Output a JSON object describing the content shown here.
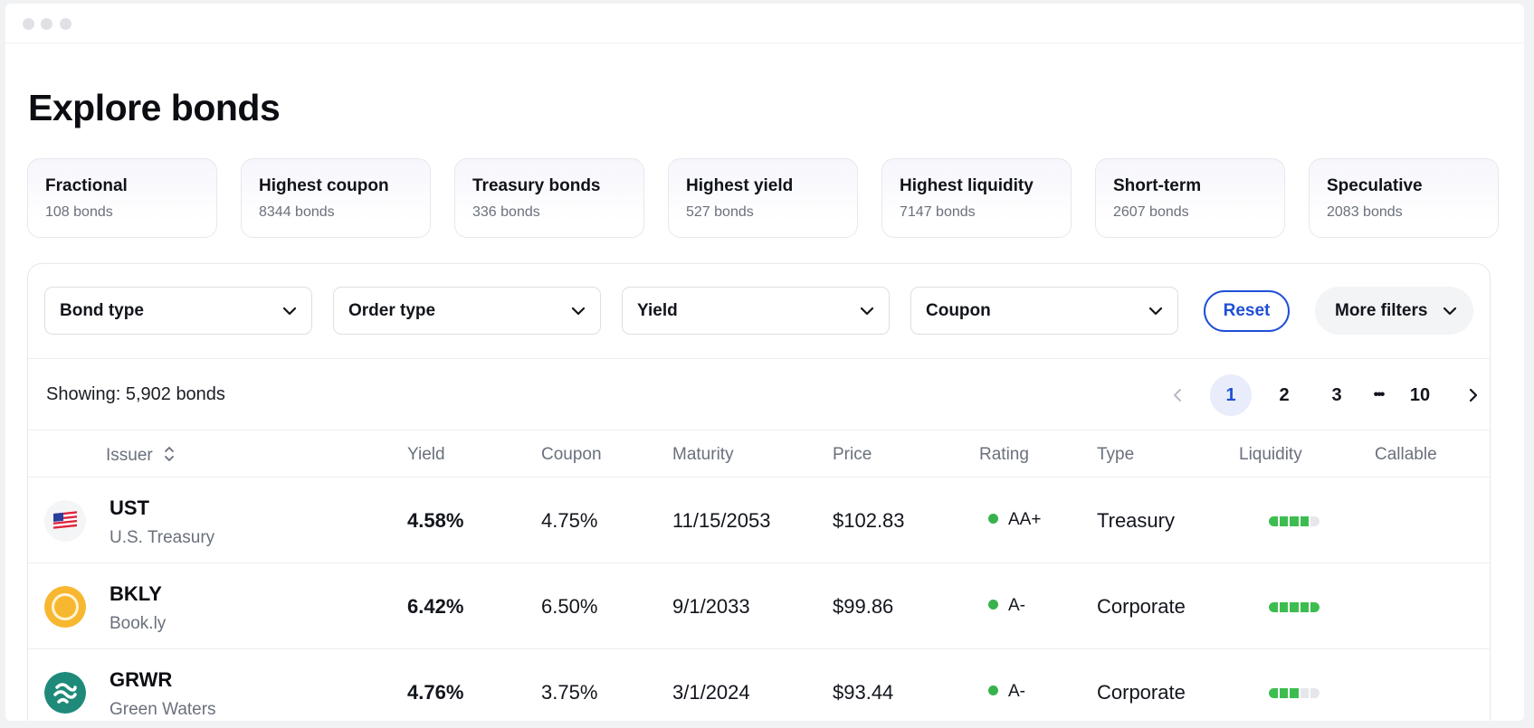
{
  "page": {
    "title": "Explore bonds"
  },
  "categories": [
    {
      "title": "Fractional",
      "count": "108 bonds"
    },
    {
      "title": "Highest coupon",
      "count": "8344 bonds"
    },
    {
      "title": "Treasury bonds",
      "count": "336 bonds"
    },
    {
      "title": "Highest yield",
      "count": "527 bonds"
    },
    {
      "title": "Highest liquidity",
      "count": "7147 bonds"
    },
    {
      "title": "Short-term",
      "count": "2607 bonds"
    },
    {
      "title": "Speculative",
      "count": "2083 bonds"
    }
  ],
  "filters": {
    "bond_type": "Bond type",
    "order_type": "Order type",
    "yield": "Yield",
    "coupon": "Coupon",
    "reset": "Reset",
    "more": "More filters"
  },
  "results": {
    "showing": "Showing: 5,902 bonds"
  },
  "pagination": {
    "pages": [
      "1",
      "2",
      "3"
    ],
    "ellipsis": "•••",
    "last": "10",
    "current": "1"
  },
  "table": {
    "columns": {
      "issuer": "Issuer",
      "yield": "Yield",
      "coupon": "Coupon",
      "maturity": "Maturity",
      "price": "Price",
      "rating": "Rating",
      "type": "Type",
      "liquidity": "Liquidity",
      "callable": "Callable"
    },
    "rows": [
      {
        "ticker": "UST",
        "issuer": "U.S. Treasury",
        "yield": "4.58%",
        "coupon": "4.75%",
        "maturity": "11/15/2053",
        "price": "$102.83",
        "rating": "AA+",
        "rating_color": "#37b24d",
        "type": "Treasury",
        "liquidity_level": 4,
        "liquidity_max": 5,
        "callable": "",
        "logo": "us-flag-icon"
      },
      {
        "ticker": "BKLY",
        "issuer": "Book.ly",
        "yield": "6.42%",
        "coupon": "6.50%",
        "maturity": "9/1/2033",
        "price": "$99.86",
        "rating": "A-",
        "rating_color": "#37b24d",
        "type": "Corporate",
        "liquidity_level": 5,
        "liquidity_max": 5,
        "callable": "",
        "logo": "bookly-logo-icon"
      },
      {
        "ticker": "GRWR",
        "issuer": "Green Waters",
        "yield": "4.76%",
        "coupon": "3.75%",
        "maturity": "3/1/2024",
        "price": "$93.44",
        "rating": "A-",
        "rating_color": "#37b24d",
        "type": "Corporate",
        "liquidity_level": 3,
        "liquidity_max": 5,
        "callable": "",
        "logo": "green-waters-logo-icon"
      }
    ]
  },
  "colors": {
    "accent": "#1f4fd6",
    "active_page_bg": "#e9edfb",
    "liquidity_on": "#3dbd4f",
    "rating_dot": "#37b24d"
  }
}
